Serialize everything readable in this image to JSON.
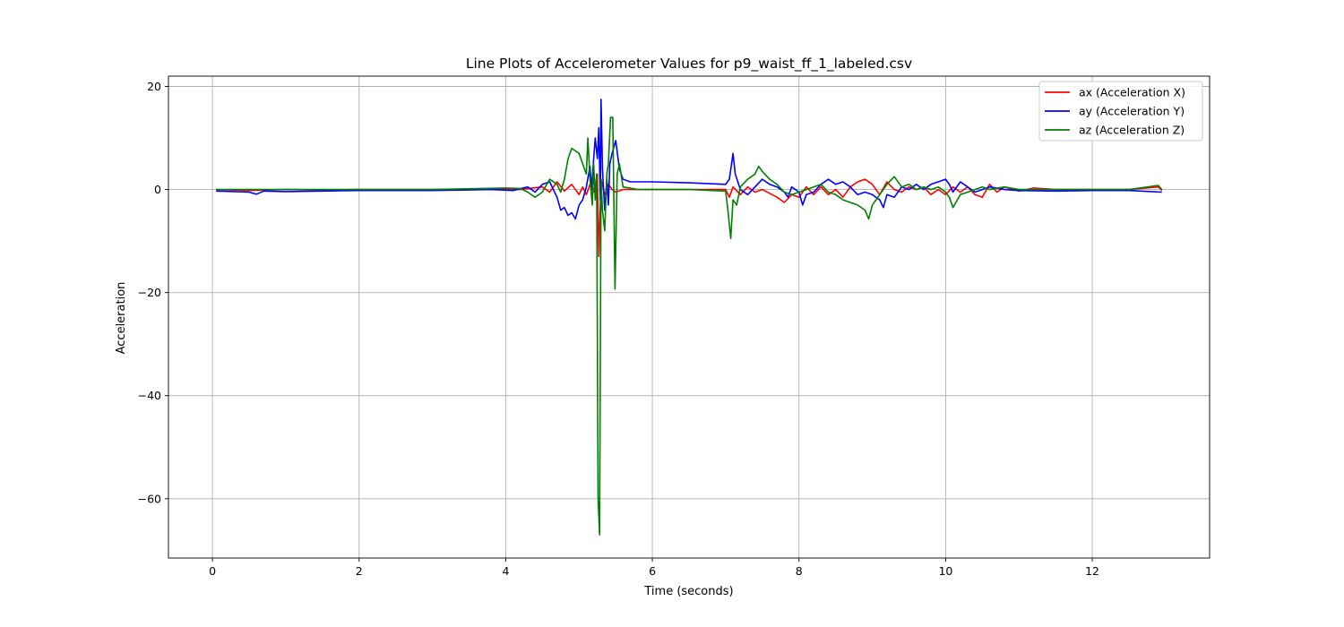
{
  "chart_data": {
    "type": "line",
    "title": "Line Plots of Accelerometer Values for p9_waist_ff_1_labeled.csv",
    "xlabel": "Time (seconds)",
    "ylabel": "Acceleration",
    "xlim": [
      -0.6,
      13.6
    ],
    "ylim": [
      -71.5,
      22
    ],
    "xticks": [
      0,
      2,
      4,
      6,
      8,
      10,
      12
    ],
    "yticks": [
      -60,
      -40,
      -20,
      0,
      20
    ],
    "grid": true,
    "legend_position": "top-right",
    "series": [
      {
        "name": "ax (Acceleration X)",
        "color": "#ff0000",
        "points": [
          [
            0.05,
            0
          ],
          [
            0.5,
            -0.2
          ],
          [
            1,
            0
          ],
          [
            1.5,
            -0.1
          ],
          [
            2,
            0
          ],
          [
            3,
            0
          ],
          [
            3.8,
            0.1
          ],
          [
            4.2,
            0
          ],
          [
            4.5,
            0.5
          ],
          [
            4.6,
            -0.5
          ],
          [
            4.7,
            1.5
          ],
          [
            4.8,
            -0.3
          ],
          [
            4.9,
            1
          ],
          [
            5.0,
            -1
          ],
          [
            5.05,
            0.5
          ],
          [
            5.1,
            -1
          ],
          [
            5.15,
            1
          ],
          [
            5.2,
            -0.5
          ],
          [
            5.25,
            3
          ],
          [
            5.27,
            -13
          ],
          [
            5.3,
            2
          ],
          [
            5.35,
            -1
          ],
          [
            5.4,
            1
          ],
          [
            5.45,
            0
          ],
          [
            5.5,
            -0.5
          ],
          [
            5.6,
            0
          ],
          [
            6,
            0
          ],
          [
            6.5,
            0
          ],
          [
            7.0,
            0
          ],
          [
            7.05,
            -1.5
          ],
          [
            7.1,
            0.5
          ],
          [
            7.2,
            -1
          ],
          [
            7.3,
            0.5
          ],
          [
            7.4,
            -0.5
          ],
          [
            7.5,
            0
          ],
          [
            7.7,
            -1.5
          ],
          [
            7.8,
            -2.5
          ],
          [
            7.9,
            -1
          ],
          [
            8.0,
            -1.5
          ],
          [
            8.1,
            0.5
          ],
          [
            8.2,
            -1
          ],
          [
            8.3,
            0.5
          ],
          [
            8.4,
            -1
          ],
          [
            8.5,
            0
          ],
          [
            8.6,
            -1.5
          ],
          [
            8.7,
            0.5
          ],
          [
            8.8,
            1.5
          ],
          [
            8.9,
            2
          ],
          [
            9.0,
            1
          ],
          [
            9.1,
            -1
          ],
          [
            9.2,
            1.5
          ],
          [
            9.3,
            0
          ],
          [
            9.4,
            -0.5
          ],
          [
            9.5,
            0.5
          ],
          [
            9.6,
            0
          ],
          [
            9.7,
            0.5
          ],
          [
            9.8,
            -1
          ],
          [
            9.9,
            0
          ],
          [
            10.0,
            -1
          ],
          [
            10.1,
            0.5
          ],
          [
            10.2,
            -0.5
          ],
          [
            10.3,
            0.5
          ],
          [
            10.4,
            -1
          ],
          [
            10.5,
            -1.5
          ],
          [
            10.6,
            1
          ],
          [
            10.7,
            -0.5
          ],
          [
            10.8,
            0.5
          ],
          [
            11.0,
            -0.3
          ],
          [
            11.2,
            0.3
          ],
          [
            11.5,
            0
          ],
          [
            12,
            0
          ],
          [
            12.5,
            0
          ],
          [
            12.9,
            0.5
          ],
          [
            12.95,
            -0.2
          ]
        ]
      },
      {
        "name": "ay (Acceleration Y)",
        "color": "#0000ff",
        "points": [
          [
            0.05,
            -0.3
          ],
          [
            0.5,
            -0.5
          ],
          [
            0.6,
            -0.9
          ],
          [
            0.7,
            -0.3
          ],
          [
            1,
            -0.4
          ],
          [
            1.5,
            -0.3
          ],
          [
            2,
            -0.2
          ],
          [
            3,
            -0.2
          ],
          [
            3.8,
            0
          ],
          [
            4.1,
            -0.2
          ],
          [
            4.3,
            0.5
          ],
          [
            4.4,
            -0.5
          ],
          [
            4.5,
            1
          ],
          [
            4.6,
            1.5
          ],
          [
            4.7,
            -1.5
          ],
          [
            4.75,
            -4
          ],
          [
            4.8,
            -3.5
          ],
          [
            4.85,
            -5
          ],
          [
            4.9,
            -4.5
          ],
          [
            4.95,
            -5.7
          ],
          [
            5.0,
            -3
          ],
          [
            5.05,
            -2
          ],
          [
            5.1,
            0.5
          ],
          [
            5.15,
            4.5
          ],
          [
            5.17,
            0
          ],
          [
            5.2,
            6
          ],
          [
            5.22,
            10
          ],
          [
            5.25,
            6
          ],
          [
            5.27,
            12
          ],
          [
            5.29,
            -2
          ],
          [
            5.3,
            17.5
          ],
          [
            5.32,
            4
          ],
          [
            5.35,
            -4
          ],
          [
            5.38,
            2
          ],
          [
            5.4,
            -3
          ],
          [
            5.42,
            5
          ],
          [
            5.45,
            7
          ],
          [
            5.5,
            9.5
          ],
          [
            5.55,
            4
          ],
          [
            5.6,
            2
          ],
          [
            5.7,
            1.5
          ],
          [
            6,
            1.5
          ],
          [
            6.5,
            1.3
          ],
          [
            7.0,
            1
          ],
          [
            7.05,
            2
          ],
          [
            7.08,
            5
          ],
          [
            7.1,
            7
          ],
          [
            7.13,
            3
          ],
          [
            7.2,
            0
          ],
          [
            7.3,
            -1
          ],
          [
            7.4,
            0.5
          ],
          [
            7.5,
            2
          ],
          [
            7.6,
            1
          ],
          [
            7.7,
            0.5
          ],
          [
            7.8,
            -0.5
          ],
          [
            7.85,
            -1.5
          ],
          [
            7.9,
            0.5
          ],
          [
            8.0,
            -0.5
          ],
          [
            8.05,
            -3
          ],
          [
            8.1,
            -1
          ],
          [
            8.2,
            -0.5
          ],
          [
            8.3,
            1
          ],
          [
            8.4,
            2
          ],
          [
            8.5,
            1
          ],
          [
            8.6,
            1.5
          ],
          [
            8.7,
            0.5
          ],
          [
            8.8,
            -1
          ],
          [
            8.9,
            -0.5
          ],
          [
            9.0,
            -1
          ],
          [
            9.1,
            -2
          ],
          [
            9.15,
            -3.5
          ],
          [
            9.2,
            -1
          ],
          [
            9.3,
            -1.5
          ],
          [
            9.4,
            0.5
          ],
          [
            9.5,
            0
          ],
          [
            9.6,
            1
          ],
          [
            9.7,
            0
          ],
          [
            9.8,
            1
          ],
          [
            9.9,
            1.5
          ],
          [
            10.0,
            2
          ],
          [
            10.05,
            1
          ],
          [
            10.1,
            -0.5
          ],
          [
            10.2,
            1.5
          ],
          [
            10.3,
            0.5
          ],
          [
            10.4,
            -0.5
          ],
          [
            10.5,
            0
          ],
          [
            10.6,
            0.5
          ],
          [
            10.8,
            0
          ],
          [
            11.0,
            -0.2
          ],
          [
            11.5,
            -0.3
          ],
          [
            12,
            -0.2
          ],
          [
            12.5,
            -0.2
          ],
          [
            12.95,
            -0.5
          ]
        ]
      },
      {
        "name": "az (Acceleration Z)",
        "color": "#008000",
        "points": [
          [
            0.05,
            0
          ],
          [
            0.5,
            0
          ],
          [
            1,
            0
          ],
          [
            2,
            0
          ],
          [
            3,
            0
          ],
          [
            3.7,
            0.2
          ],
          [
            4.0,
            0.3
          ],
          [
            4.2,
            0.2
          ],
          [
            4.3,
            -0.5
          ],
          [
            4.4,
            -1.5
          ],
          [
            4.5,
            -0.5
          ],
          [
            4.6,
            2
          ],
          [
            4.7,
            1
          ],
          [
            4.75,
            -0.5
          ],
          [
            4.8,
            2
          ],
          [
            4.85,
            6
          ],
          [
            4.9,
            8
          ],
          [
            5.0,
            7
          ],
          [
            5.05,
            5
          ],
          [
            5.1,
            3
          ],
          [
            5.12,
            10
          ],
          [
            5.15,
            2
          ],
          [
            5.18,
            -3
          ],
          [
            5.2,
            5
          ],
          [
            5.22,
            -2
          ],
          [
            5.24,
            3
          ],
          [
            5.26,
            -60
          ],
          [
            5.28,
            -67
          ],
          [
            5.3,
            2
          ],
          [
            5.32,
            -4
          ],
          [
            5.35,
            -8
          ],
          [
            5.38,
            3
          ],
          [
            5.4,
            5
          ],
          [
            5.43,
            14
          ],
          [
            5.46,
            14
          ],
          [
            5.49,
            -19.3
          ],
          [
            5.52,
            3
          ],
          [
            5.55,
            5
          ],
          [
            5.6,
            0.5
          ],
          [
            5.8,
            0
          ],
          [
            6,
            0
          ],
          [
            6.5,
            0
          ],
          [
            7.0,
            -0.3
          ],
          [
            7.03,
            -4
          ],
          [
            7.07,
            -9.5
          ],
          [
            7.1,
            -2
          ],
          [
            7.15,
            -3
          ],
          [
            7.2,
            0.5
          ],
          [
            7.3,
            2
          ],
          [
            7.4,
            3
          ],
          [
            7.45,
            4.5
          ],
          [
            7.5,
            3.5
          ],
          [
            7.6,
            2
          ],
          [
            7.7,
            1
          ],
          [
            7.8,
            -0.5
          ],
          [
            7.9,
            -1
          ],
          [
            8.0,
            -0.5
          ],
          [
            8.1,
            0
          ],
          [
            8.2,
            0.5
          ],
          [
            8.3,
            1
          ],
          [
            8.4,
            -0.5
          ],
          [
            8.5,
            -1
          ],
          [
            8.6,
            -2
          ],
          [
            8.7,
            -2.5
          ],
          [
            8.8,
            -3
          ],
          [
            8.9,
            -4
          ],
          [
            8.95,
            -5.7
          ],
          [
            9.0,
            -3
          ],
          [
            9.1,
            -1
          ],
          [
            9.2,
            1
          ],
          [
            9.3,
            2.5
          ],
          [
            9.4,
            0.5
          ],
          [
            9.5,
            1
          ],
          [
            9.6,
            0
          ],
          [
            9.7,
            0.5
          ],
          [
            9.8,
            0
          ],
          [
            9.9,
            0.5
          ],
          [
            10.0,
            -0.5
          ],
          [
            10.05,
            -1.5
          ],
          [
            10.1,
            -3.5
          ],
          [
            10.2,
            -1
          ],
          [
            10.3,
            -0.5
          ],
          [
            10.4,
            0
          ],
          [
            10.5,
            0.5
          ],
          [
            10.6,
            0
          ],
          [
            10.8,
            0.5
          ],
          [
            11.0,
            0
          ],
          [
            11.5,
            0
          ],
          [
            12,
            0
          ],
          [
            12.5,
            0
          ],
          [
            12.9,
            0.8
          ],
          [
            12.95,
            0
          ]
        ]
      }
    ]
  }
}
